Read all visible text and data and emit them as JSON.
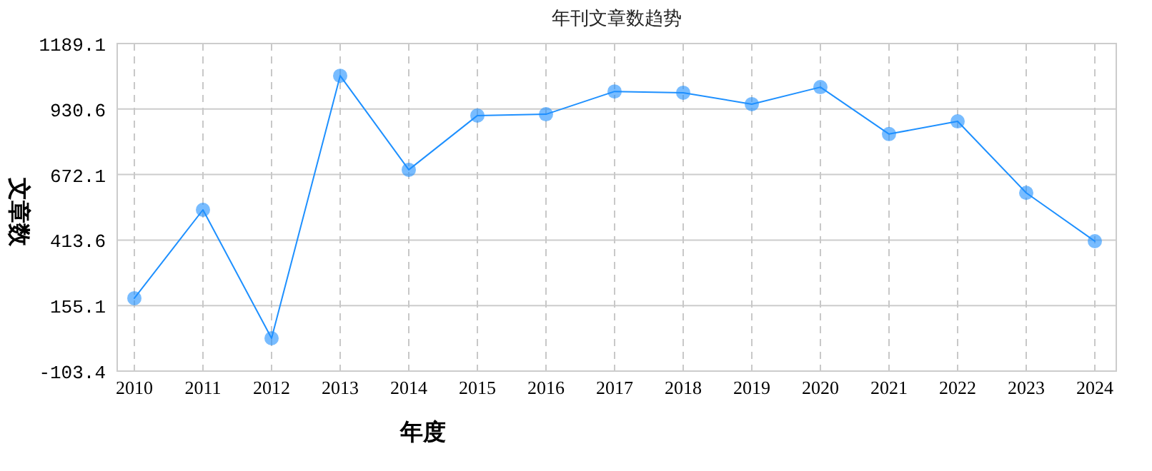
{
  "chart_data": {
    "type": "line",
    "title": "年刊文章数趋势",
    "xlabel": "年度",
    "ylabel": "文章数",
    "categories": [
      "2010",
      "2011",
      "2012",
      "2013",
      "2014",
      "2015",
      "2016",
      "2017",
      "2018",
      "2019",
      "2020",
      "2021",
      "2022",
      "2023",
      "2024"
    ],
    "series": [
      {
        "color": "#1e90ff",
        "values": [
          184,
          533,
          26,
          1062,
          691,
          905,
          910,
          1000,
          995,
          950,
          1017,
          832,
          882,
          600,
          409
        ]
      }
    ],
    "ylim": [
      -103.4,
      1189.1
    ],
    "yticks": [
      -103.4,
      155.1,
      413.6,
      672.1,
      930.6,
      1189.1
    ],
    "grid": true,
    "marker": "circle"
  }
}
